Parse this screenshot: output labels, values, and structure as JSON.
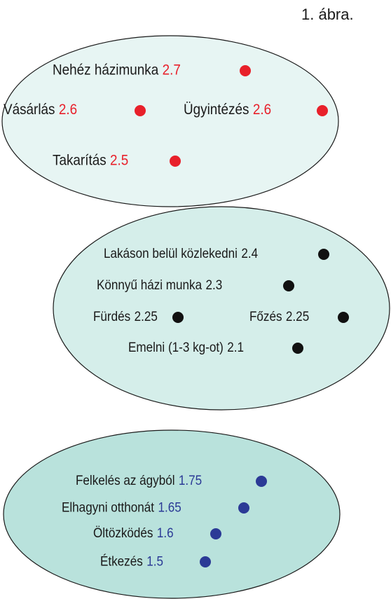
{
  "figure_label": "1. ábra.",
  "groups": [
    {
      "items": [
        {
          "label": "Nehéz házimunka",
          "value": 2.7
        },
        {
          "label": "Vásárlás",
          "value": 2.6
        },
        {
          "label": "Ügyintézés",
          "value": 2.6
        },
        {
          "label": "Takarítás",
          "value": 2.5
        }
      ]
    },
    {
      "items": [
        {
          "label": "Lakáson belül közlekedni",
          "value": 2.4
        },
        {
          "label": "Könnyű házi munka",
          "value": 2.3
        },
        {
          "label": "Fürdés",
          "value": 2.25
        },
        {
          "label": "Főzés",
          "value": 2.25
        },
        {
          "label": "Emelni (1-3 kg-ot)",
          "value": 2.1
        }
      ]
    },
    {
      "items": [
        {
          "label": "Felkelés az ágyból",
          "value": 1.75
        },
        {
          "label": "Elhagyni otthonát",
          "value": 1.65
        },
        {
          "label": "Öltözködés",
          "value": 1.6
        },
        {
          "label": "Étkezés",
          "value": 1.5
        }
      ]
    }
  ]
}
